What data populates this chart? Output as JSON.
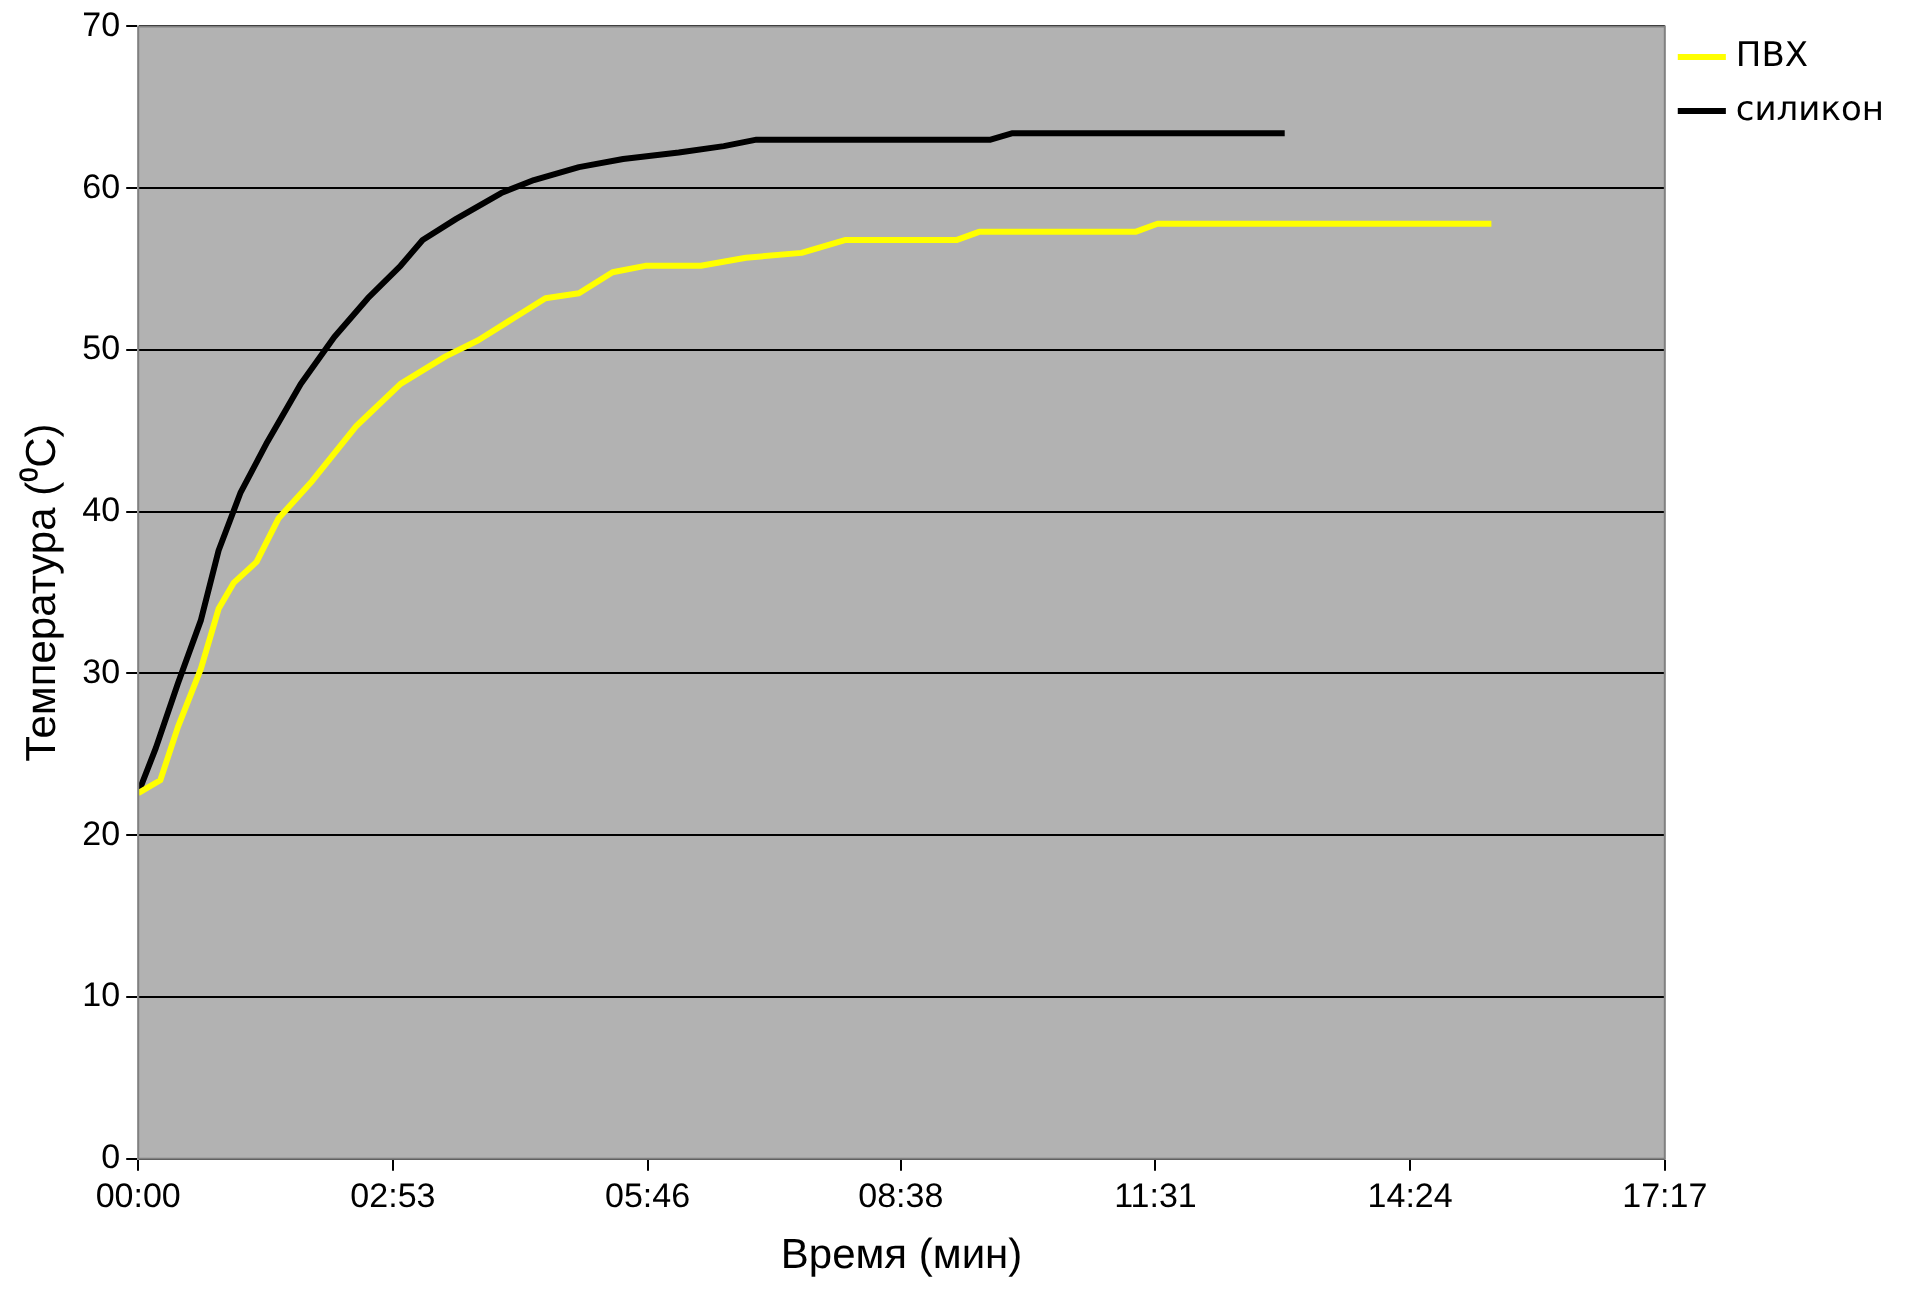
{
  "chart_data": {
    "type": "line",
    "xlabel": "Время (мин)",
    "ylabel": "Температура (⁰C)",
    "xlim": [
      0,
      17.2833
    ],
    "xticks": [
      {
        "value": 0,
        "label": "00:00"
      },
      {
        "value": 2.8833,
        "label": "02:53"
      },
      {
        "value": 5.7667,
        "label": "05:46"
      },
      {
        "value": 8.6333,
        "label": "08:38"
      },
      {
        "value": 11.5167,
        "label": "11:31"
      },
      {
        "value": 14.4,
        "label": "14:24"
      },
      {
        "value": 17.2833,
        "label": "17:17"
      }
    ],
    "ylim": [
      0,
      70
    ],
    "yticks": [
      0,
      10,
      20,
      30,
      40,
      50,
      60,
      70
    ],
    "grid": "y",
    "legend": "top right",
    "marker": "none",
    "line_style": "solid",
    "series": [
      {
        "name": "ПВХ",
        "color": "#ffff00",
        "x": [
          0,
          0.25,
          0.45,
          0.71,
          0.91,
          1.08,
          1.34,
          1.59,
          1.97,
          2.47,
          2.97,
          3.48,
          3.85,
          4.23,
          4.61,
          4.99,
          5.37,
          5.74,
          6.37,
          6.88,
          7.51,
          8.01,
          9.27,
          9.52,
          11.29,
          11.54,
          15.32
        ],
        "values": [
          22.6,
          23.4,
          26.7,
          30.3,
          34,
          35.6,
          36.9,
          39.6,
          41.9,
          45.3,
          47.9,
          49.6,
          50.6,
          51.9,
          53.2,
          53.5,
          54.8,
          55.2,
          55.2,
          55.7,
          56,
          56.8,
          56.8,
          57.3,
          57.3,
          57.8,
          57.8
        ]
      },
      {
        "name": "силикон",
        "color": "#000000",
        "x": [
          0,
          0.2,
          0.45,
          0.71,
          0.91,
          1.16,
          1.46,
          1.84,
          2.22,
          2.6,
          2.97,
          3.22,
          3.6,
          4.11,
          4.48,
          4.99,
          5.49,
          6.12,
          6.63,
          7,
          8.26,
          9.65,
          9.9,
          12.98
        ],
        "values": [
          22.6,
          25.4,
          29.4,
          33.3,
          37.6,
          41.2,
          44.3,
          47.9,
          50.8,
          53.2,
          55.2,
          56.8,
          58.1,
          59.7,
          60.5,
          61.3,
          61.8,
          62.2,
          62.6,
          63,
          63,
          63,
          63.4,
          63.4
        ]
      }
    ]
  }
}
